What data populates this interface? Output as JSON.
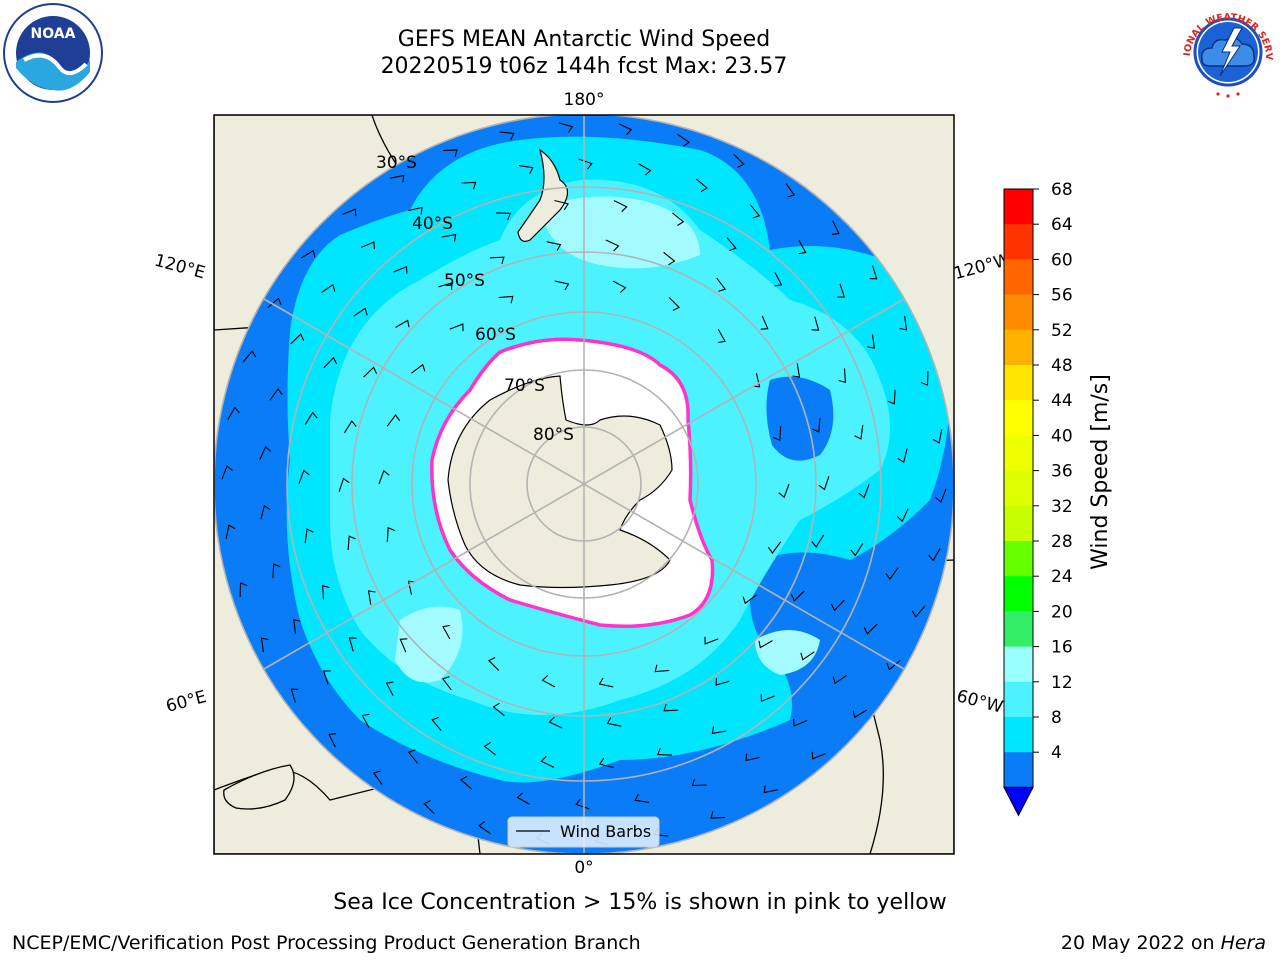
{
  "title": {
    "line1": "GEFS MEAN Antarctic Wind Speed",
    "line2": "20220519 t06z 144h fcst   Max: 23.57"
  },
  "logos": {
    "left": {
      "icon": "noaa-logo",
      "text": "NOAA"
    },
    "right": {
      "icon": "nws-logo",
      "text": "NATIONAL WEATHER SERVICE"
    }
  },
  "map": {
    "projection": "south-polar-stereographic",
    "lon_labels": {
      "top": "180°",
      "bottom": "0°",
      "left_upper": "120°E",
      "left_lower": "60°E",
      "right_upper": "120°W",
      "right_lower": "60°W"
    },
    "lat_labels": [
      "30°S",
      "40°S",
      "50°S",
      "60°S",
      "70°S",
      "80°S"
    ],
    "legend": {
      "label": "Wind Barbs"
    },
    "colors": {
      "land": "#eeecdc",
      "ocean_4_8": "#0a7cf7",
      "ocean_8_12": "#00e6ff",
      "ocean_12_16": "#4cf3ff",
      "ocean_16_20": "#a3fbff",
      "ice": "#ffffff",
      "ice_edge": "#ff33cc"
    }
  },
  "colorbar": {
    "label": "Wind Speed [m/s]",
    "ticks": [
      "68",
      "64",
      "60",
      "56",
      "52",
      "48",
      "44",
      "40",
      "36",
      "32",
      "28",
      "24",
      "20",
      "16",
      "12",
      "8",
      "4"
    ],
    "colors": [
      "#ff0000",
      "#ff3300",
      "#ff6600",
      "#ff8c00",
      "#ffb300",
      "#ffe600",
      "#ffff00",
      "#eeff00",
      "#ddff00",
      "#c8ff00",
      "#66ff00",
      "#00ff00",
      "#33ee66",
      "#99ffff",
      "#4cf3ff",
      "#00e6ff",
      "#0a7cf7"
    ],
    "extend_color": "#0000ff"
  },
  "note": "Sea Ice Concentration > 15% is shown in pink to yellow",
  "footer": {
    "left": "NCEP/EMC/Verification Post Processing Product Generation Branch",
    "right_date": "20 May 2022 on ",
    "right_machine": "Hera"
  }
}
